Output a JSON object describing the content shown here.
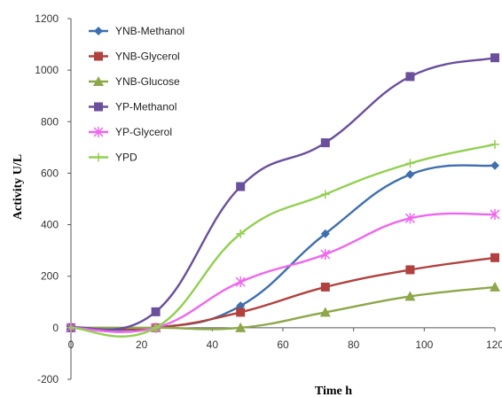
{
  "chart_data": {
    "type": "line",
    "xlabel": "Time h",
    "ylabel": "Activity U/L",
    "xlim": [
      0,
      120
    ],
    "ylim": [
      -200,
      1200
    ],
    "xticks": [
      "0",
      "20",
      "40",
      "60",
      "80",
      "100",
      "120"
    ],
    "yticks": [
      "-200",
      "0",
      "200",
      "400",
      "600",
      "800",
      "1000",
      "1200"
    ],
    "grid": false,
    "legend_position": "top-left",
    "x": [
      0,
      24,
      48,
      72,
      96,
      120
    ],
    "series": [
      {
        "name": "YNB-Methanol",
        "values": [
          0,
          0,
          85,
          365,
          595,
          630
        ],
        "color": "#3F6FAF",
        "marker": "diamond"
      },
      {
        "name": "YNB-Glycerol",
        "values": [
          0,
          0,
          60,
          158,
          225,
          272
        ],
        "color": "#B0413E",
        "marker": "square"
      },
      {
        "name": "YNB-Glucose",
        "values": [
          0,
          0,
          0,
          60,
          122,
          158
        ],
        "color": "#8CA84A",
        "marker": "triangle"
      },
      {
        "name": "YP-Methanol",
        "values": [
          0,
          62,
          548,
          718,
          975,
          1048
        ],
        "color": "#6A4F9C",
        "marker": "square"
      },
      {
        "name": "YP-Glycerol",
        "values": [
          0,
          0,
          178,
          285,
          425,
          440
        ],
        "color": "#EE66EE",
        "marker": "asterisk"
      },
      {
        "name": "YPD",
        "values": [
          0,
          0,
          365,
          518,
          638,
          712
        ],
        "color": "#92D050",
        "marker": "plus"
      }
    ]
  }
}
